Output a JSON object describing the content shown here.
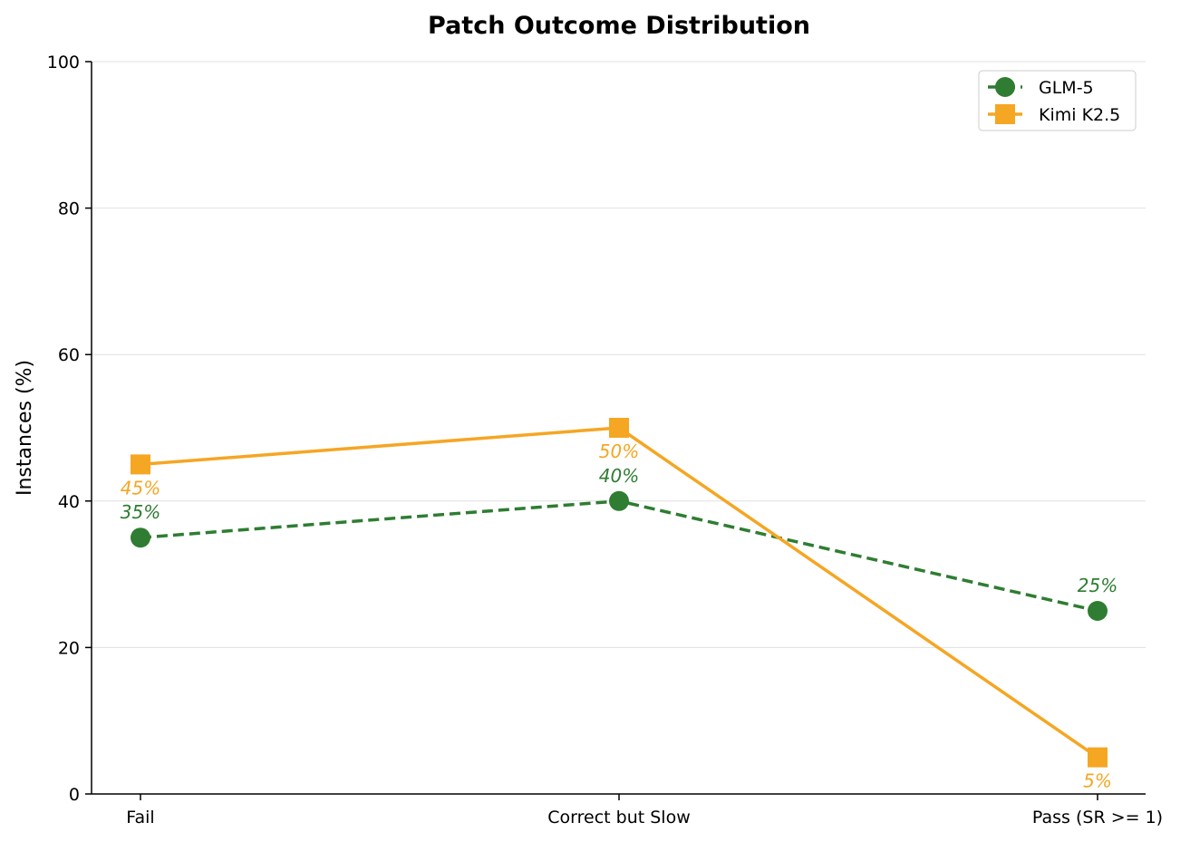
{
  "chart_data": {
    "type": "line",
    "title": "Patch Outcome Distribution",
    "xlabel": "",
    "ylabel": "Instances (%)",
    "categories": [
      "Fail",
      "Correct but Slow",
      "Pass (SR >= 1)"
    ],
    "ylim": [
      0,
      100
    ],
    "yticks": [
      0,
      20,
      40,
      60,
      80,
      100
    ],
    "grid": "horizontal",
    "legend_position": "top-right",
    "series": [
      {
        "name": "GLM-5",
        "values": [
          35,
          40,
          25
        ],
        "labels": [
          "35%",
          "40%",
          "25%"
        ],
        "color": "#2e7d32",
        "line_style": "dashed",
        "marker": "circle"
      },
      {
        "name": "Kimi K2.5",
        "values": [
          45,
          50,
          5
        ],
        "labels": [
          "45%",
          "50%",
          "5%"
        ],
        "color": "#f5a623",
        "line_style": "solid",
        "marker": "square"
      }
    ]
  }
}
